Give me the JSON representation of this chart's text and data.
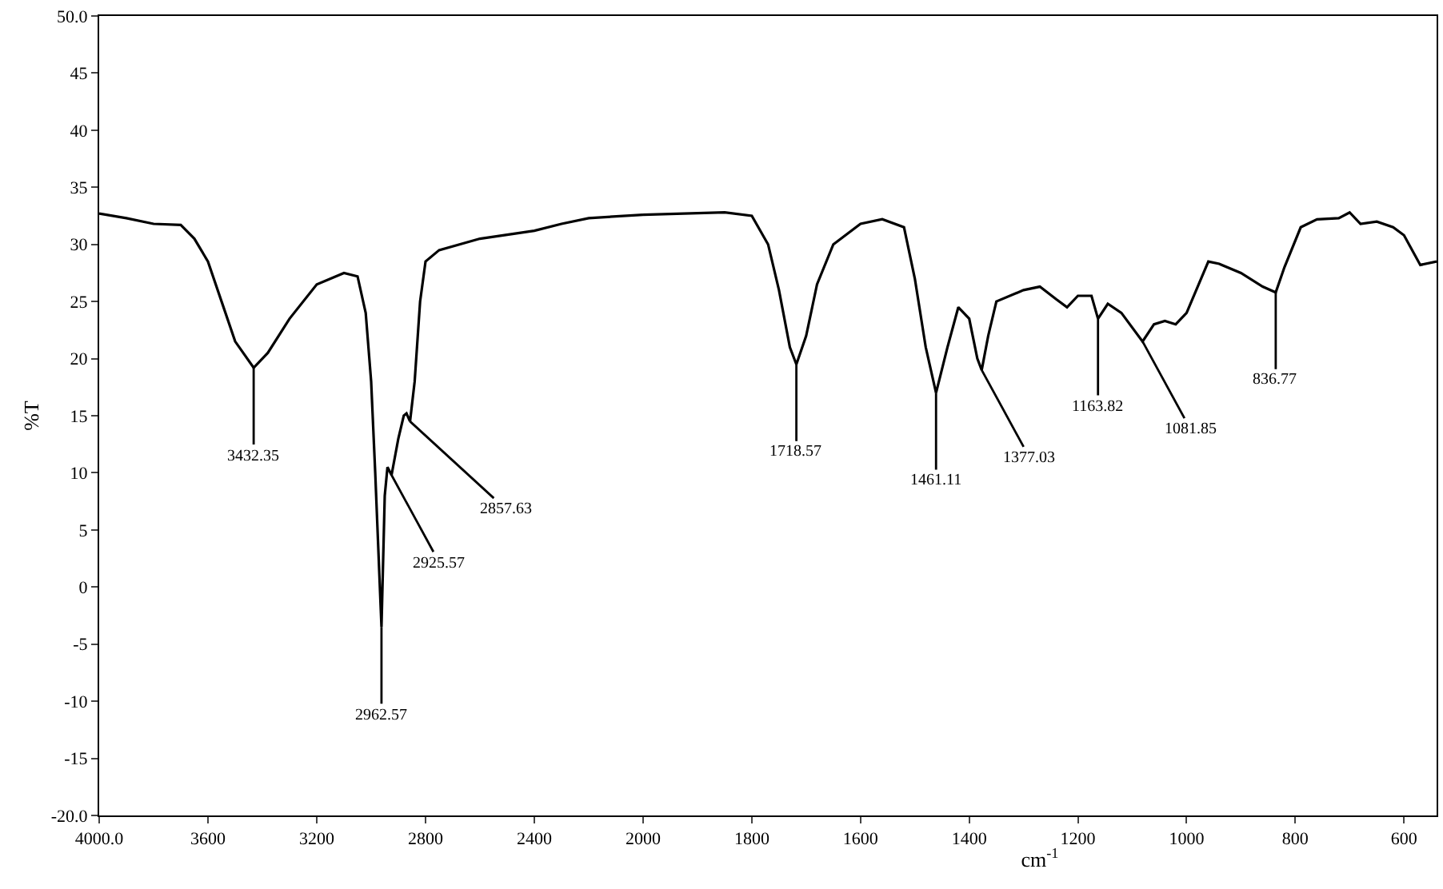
{
  "chart_data": [
    {
      "type": "line",
      "ylabel": "%T",
      "x": [
        4000,
        3900,
        3800,
        3700,
        3650,
        3600,
        3550,
        3500,
        3432,
        3380,
        3300,
        3200,
        3100,
        3050,
        3020,
        3000,
        2985,
        2962,
        2950,
        2940,
        2925,
        2900,
        2880,
        2870,
        2857,
        2840,
        2820,
        2800,
        2750,
        2600,
        2400,
        2300,
        2200,
        2000
      ],
      "series": [
        {
          "color": "#000000",
          "values": [
            32.7,
            32.3,
            31.8,
            31.7,
            30.5,
            28.5,
            25,
            21.5,
            19.2,
            20.5,
            23.5,
            26.5,
            27.5,
            27.2,
            24,
            18,
            10,
            -3.5,
            8,
            10.5,
            9.8,
            13,
            15,
            15.2,
            14.5,
            18,
            25,
            28.5,
            29.5,
            30.5,
            31.2,
            31.8,
            32.3,
            32.6
          ]
        }
      ],
      "xlim": [
        4000,
        2000
      ],
      "xticks": [
        {
          "value": 4000,
          "label": "4000.0"
        },
        3600,
        3200,
        2800,
        2400,
        2000
      ],
      "ylim": [
        -20,
        50
      ],
      "yticks": [
        {
          "value": -20,
          "label": "-20.0"
        },
        -15,
        -10,
        -5,
        0,
        5,
        10,
        15,
        20,
        25,
        30,
        35,
        40,
        45,
        {
          "value": 50,
          "label": "50.0"
        }
      ],
      "grid": false,
      "marker": "none",
      "line_style": "solid",
      "annotations": [
        {
          "text": "3432.35",
          "x": 3432,
          "y": 19.2
        },
        {
          "text": "2962.57",
          "x": 2962,
          "y": -3.5
        },
        {
          "text": "2925.57",
          "x": 2925,
          "y": 9.8
        },
        {
          "text": "2857.63",
          "x": 2857,
          "y": 14.5
        }
      ]
    },
    {
      "type": "line",
      "xlabel": "cm$^{-1}$",
      "x": [
        2000,
        1850,
        1800,
        1770,
        1750,
        1730,
        1718,
        1700,
        1680,
        1650,
        1600,
        1560,
        1520,
        1500,
        1480,
        1461,
        1440,
        1420,
        1400,
        1385,
        1377,
        1365,
        1350,
        1300,
        1270,
        1240,
        1220,
        1200,
        1175,
        1163,
        1145,
        1120,
        1081,
        1060,
        1040,
        1020,
        1000,
        960,
        940,
        900,
        860,
        836,
        820,
        790,
        760,
        720,
        700,
        680,
        650,
        620,
        600,
        570,
        540
      ],
      "series": [
        {
          "color": "#000000",
          "values": [
            32.6,
            32.8,
            32.5,
            30,
            26,
            21,
            19.5,
            22,
            26.5,
            30,
            31.8,
            32.2,
            31.5,
            27,
            21,
            17,
            21,
            24.5,
            23.5,
            20,
            19,
            22,
            25,
            26,
            26.3,
            25.2,
            24.5,
            25.5,
            25.5,
            23.5,
            24.8,
            24,
            21.5,
            23,
            23.3,
            23,
            24,
            28.5,
            28.3,
            27.5,
            26.3,
            25.8,
            28,
            31.5,
            32.2,
            32.3,
            32.8,
            31.8,
            32,
            31.5,
            30.8,
            28.2,
            28.5
          ]
        }
      ],
      "xlim": [
        2000,
        540
      ],
      "xticks": [
        1800,
        1600,
        1400,
        1200,
        1000,
        800,
        600
      ],
      "ylim": [
        -20,
        50
      ],
      "tick_labels": "x",
      "grid": false,
      "marker": "none",
      "line_style": "solid",
      "annotations": [
        {
          "text": "1718.57",
          "x": 1718,
          "y": 19.5
        },
        {
          "text": "1461.11",
          "x": 1461,
          "y": 17
        },
        {
          "text": "1377.03",
          "x": 1377,
          "y": 19
        },
        {
          "text": "1163.82",
          "x": 1163,
          "y": 23.5
        },
        {
          "text": "1081.85",
          "x": 1081,
          "y": 21.5
        },
        {
          "text": "836.77",
          "x": 836,
          "y": 25.8
        }
      ]
    }
  ]
}
